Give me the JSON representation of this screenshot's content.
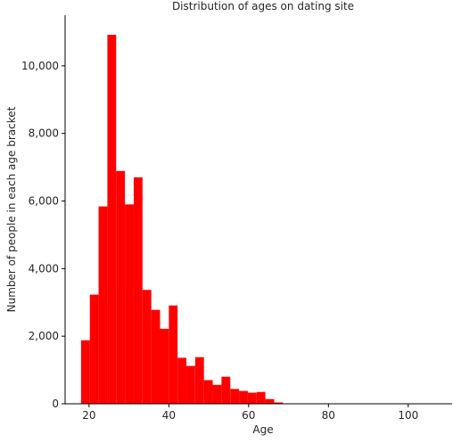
{
  "chart_data": {
    "type": "bar",
    "title": "Distribution of ages on dating site",
    "xlabel": "Age",
    "ylabel": "Number of people in each age bracket",
    "xlim": [
      14,
      111
    ],
    "ylim": [
      0,
      11500
    ],
    "x_ticks": [
      {
        "value": 20,
        "label": "20"
      },
      {
        "value": 40,
        "label": "40"
      },
      {
        "value": 60,
        "label": "60"
      },
      {
        "value": 80,
        "label": "80"
      },
      {
        "value": 100,
        "label": "100"
      }
    ],
    "y_ticks": [
      {
        "value": 0,
        "label": "0"
      },
      {
        "value": 2000,
        "label": "2,000"
      },
      {
        "value": 4000,
        "label": "4,000"
      },
      {
        "value": 6000,
        "label": "6,000"
      },
      {
        "value": 8000,
        "label": "8,000"
      },
      {
        "value": 10000,
        "label": "10,000"
      }
    ],
    "bin_width": 2.2,
    "bins": [
      {
        "start": 18.0,
        "value": 1880
      },
      {
        "start": 20.2,
        "value": 3230
      },
      {
        "start": 22.4,
        "value": 5840
      },
      {
        "start": 24.6,
        "value": 10920
      },
      {
        "start": 26.8,
        "value": 6890
      },
      {
        "start": 29.0,
        "value": 5900
      },
      {
        "start": 31.2,
        "value": 6700
      },
      {
        "start": 33.4,
        "value": 3370
      },
      {
        "start": 35.6,
        "value": 2780
      },
      {
        "start": 37.8,
        "value": 2220
      },
      {
        "start": 40.0,
        "value": 2910
      },
      {
        "start": 42.2,
        "value": 1360
      },
      {
        "start": 44.4,
        "value": 1120
      },
      {
        "start": 46.6,
        "value": 1380
      },
      {
        "start": 48.8,
        "value": 700
      },
      {
        "start": 51.0,
        "value": 560
      },
      {
        "start": 53.2,
        "value": 800
      },
      {
        "start": 55.4,
        "value": 440
      },
      {
        "start": 57.6,
        "value": 380
      },
      {
        "start": 59.8,
        "value": 330
      },
      {
        "start": 62.0,
        "value": 350
      },
      {
        "start": 64.2,
        "value": 140
      },
      {
        "start": 66.4,
        "value": 40
      },
      {
        "start": 68.6,
        "value": 10
      },
      {
        "start": 70.8,
        "value": 3
      },
      {
        "start": 73.0,
        "value": 2
      },
      {
        "start": 75.2,
        "value": 2
      },
      {
        "start": 77.4,
        "value": 1
      },
      {
        "start": 79.6,
        "value": 1
      }
    ],
    "bar_color": "#ff0000",
    "grid": false,
    "legend": "none"
  }
}
